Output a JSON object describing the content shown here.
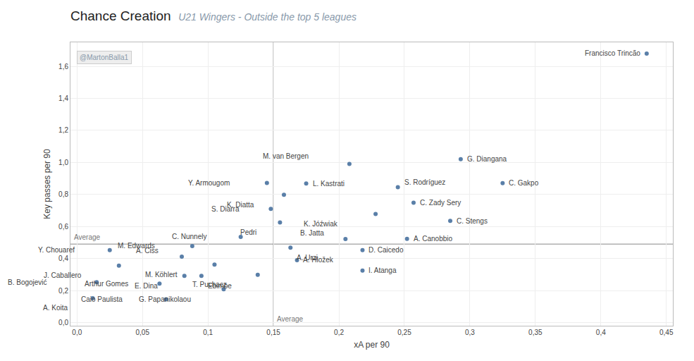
{
  "chart_data": {
    "type": "scatter",
    "title": "Chance Creation",
    "subtitle": "U21 Wingers - Outside the top 5 leagues",
    "x_label": "xA per 90",
    "y_label": "Key passes per 90",
    "watermark": "@MartonBalla1",
    "color": "#5a7fa8",
    "grid": true,
    "labels": [
      "Francisco Trincão",
      "G. Diangana",
      "C. Gakpo",
      "M. van Bergen",
      "S. Rodríguez",
      "L. Kastrati",
      "Y. Armougom",
      "K. Diatta",
      "C. Zady Sery",
      "S. Diarra",
      "K. Jóźwiak",
      "C. Stengs",
      "Pedri",
      "C. Nunnely",
      "B. Jatta",
      "A. Canobbio",
      "M. Edwards",
      "A. Urzi",
      "D. Caicedo",
      "Y. Chouaref",
      "A. Ciss",
      "M. Köhlert",
      "A. Hložek",
      "J. Caballero",
      "E. Dina",
      "Ebimbe",
      "T. Puchacz",
      "I. Atanga",
      "B. Bogojević",
      "Arthur Gomes",
      "G. Papanikolaou",
      "A. Koita",
      "Caio Paulista"
    ],
    "x": [
      0.435,
      0.293,
      0.325,
      0.208,
      0.245,
      0.175,
      0.145,
      0.158,
      0.257,
      0.148,
      0.228,
      0.285,
      0.155,
      0.125,
      0.205,
      0.252,
      0.088,
      0.163,
      0.218,
      0.025,
      0.08,
      0.105,
      0.168,
      0.032,
      0.082,
      0.095,
      0.138,
      0.218,
      0.015,
      0.063,
      0.112,
      0.012,
      0.068
    ],
    "y": [
      1.68,
      1.02,
      0.87,
      0.99,
      0.845,
      0.868,
      0.872,
      0.798,
      0.748,
      0.71,
      0.678,
      0.635,
      0.625,
      0.535,
      0.522,
      0.523,
      0.478,
      0.468,
      0.452,
      0.452,
      0.412,
      0.362,
      0.39,
      0.355,
      0.292,
      0.292,
      0.298,
      0.325,
      0.252,
      0.243,
      0.208,
      0.152,
      0.145
    ],
    "reference_lines": [
      {
        "axis": "x",
        "value": 0.15,
        "label": "Average",
        "color": "#888888"
      },
      {
        "axis": "y",
        "value": 0.49,
        "label": "Average",
        "color": "#888888"
      }
    ],
    "xlim": [
      -0.005,
      0.455
    ],
    "ylim": [
      -0.02,
      1.75
    ],
    "xticks": [
      {
        "value": 0.0,
        "label": "0,0"
      },
      {
        "value": 0.05,
        "label": "0,05"
      },
      {
        "value": 0.1,
        "label": "0,1"
      },
      {
        "value": 0.15,
        "label": "0,15"
      },
      {
        "value": 0.2,
        "label": "0,2"
      },
      {
        "value": 0.25,
        "label": "0,25"
      },
      {
        "value": 0.3,
        "label": "0,3"
      },
      {
        "value": 0.35,
        "label": "0,35"
      },
      {
        "value": 0.4,
        "label": "0,4"
      },
      {
        "value": 0.45,
        "label": "0,45"
      }
    ],
    "yticks": [
      {
        "value": 0.0,
        "label": "0,0"
      },
      {
        "value": 0.2,
        "label": "0,2"
      },
      {
        "value": 0.4,
        "label": "0,4"
      },
      {
        "value": 0.6,
        "label": "0,6"
      },
      {
        "value": 0.8,
        "label": "0,8"
      },
      {
        "value": 1.0,
        "label": "1,0"
      },
      {
        "value": 1.2,
        "label": "1,2"
      },
      {
        "value": 1.4,
        "label": "1,4"
      },
      {
        "value": 1.6,
        "label": "1,6"
      }
    ]
  }
}
